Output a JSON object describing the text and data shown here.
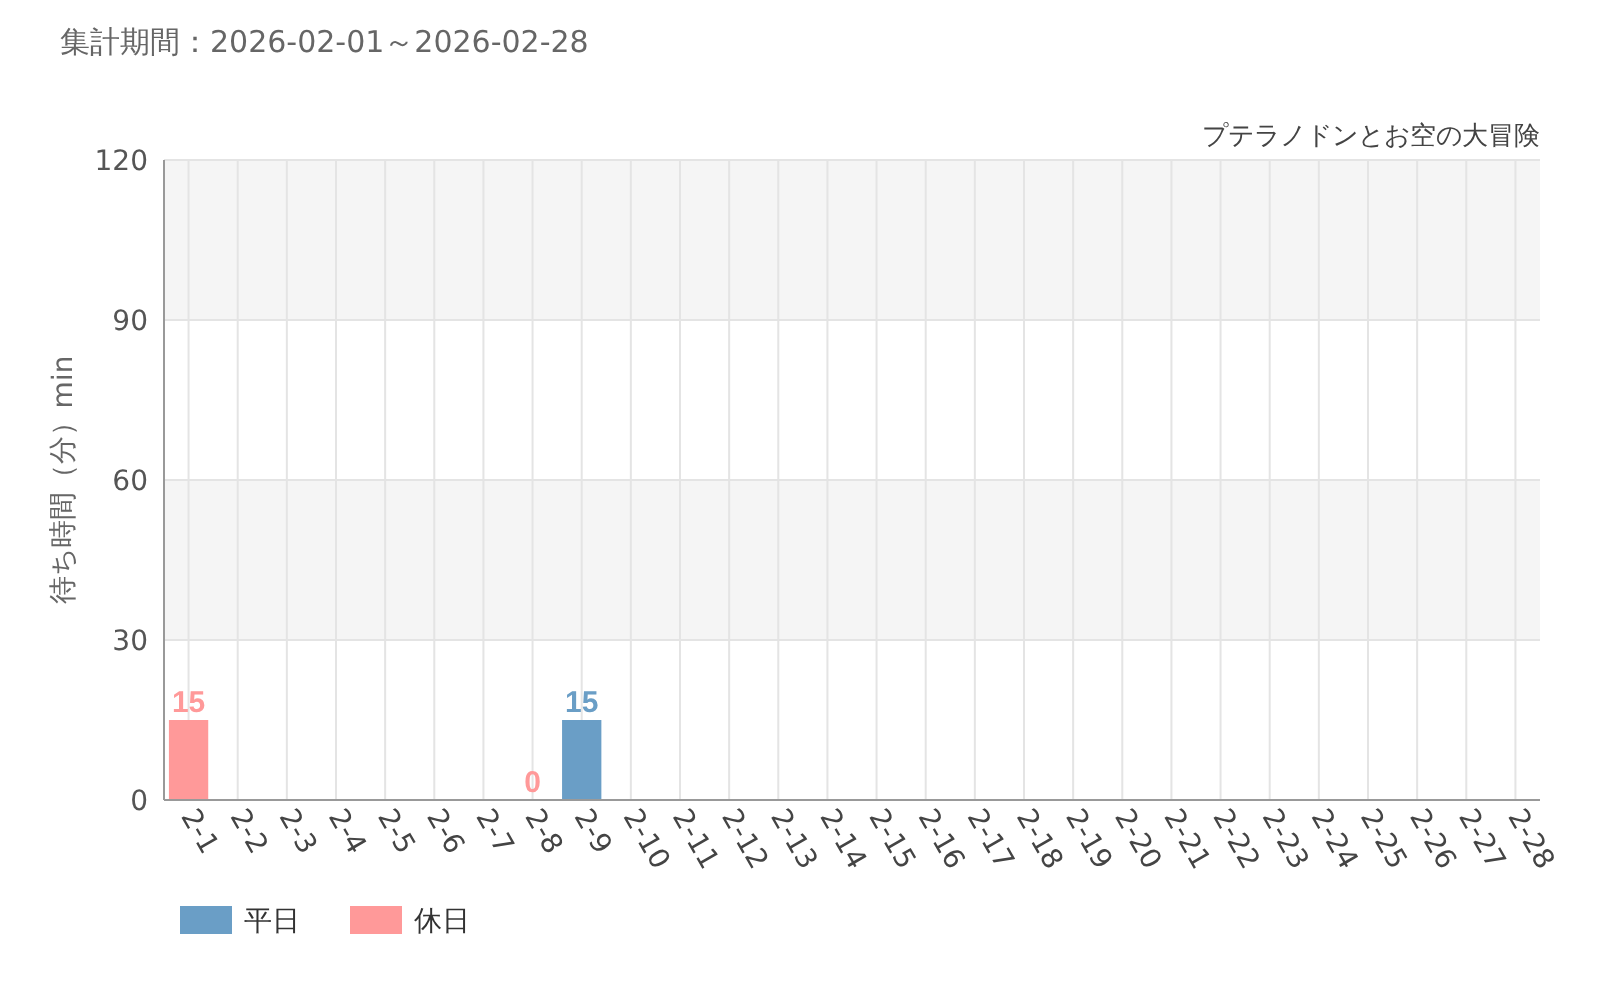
{
  "chart_data": {
    "type": "bar",
    "title": "集計期間：2026-02-01～2026-02-28",
    "subtitle": "プテラノドンとお空の大冒険",
    "ylabel": "待ち時間（分）min",
    "categories": [
      "2-1",
      "2-2",
      "2-3",
      "2-4",
      "2-5",
      "2-6",
      "2-7",
      "2-8",
      "2-9",
      "2-10",
      "2-11",
      "2-12",
      "2-13",
      "2-14",
      "2-15",
      "2-16",
      "2-17",
      "2-18",
      "2-19",
      "2-20",
      "2-21",
      "2-22",
      "2-23",
      "2-24",
      "2-25",
      "2-26",
      "2-27",
      "2-28"
    ],
    "series": [
      {
        "name": "平日",
        "color": "#6a9ec6",
        "values": [
          null,
          null,
          null,
          null,
          null,
          null,
          null,
          null,
          15,
          null,
          null,
          null,
          null,
          null,
          null,
          null,
          null,
          null,
          null,
          null,
          null,
          null,
          null,
          null,
          null,
          null,
          null,
          null
        ],
        "value_labels": [
          null,
          null,
          null,
          null,
          null,
          null,
          null,
          null,
          "15",
          null,
          null,
          null,
          null,
          null,
          null,
          null,
          null,
          null,
          null,
          null,
          null,
          null,
          null,
          null,
          null,
          null,
          null,
          null
        ]
      },
      {
        "name": "休日",
        "color": "#ff9999",
        "values": [
          15,
          null,
          null,
          null,
          null,
          null,
          null,
          0,
          null,
          null,
          null,
          null,
          null,
          null,
          null,
          null,
          null,
          null,
          null,
          null,
          null,
          null,
          null,
          null,
          null,
          null,
          null,
          null
        ],
        "value_labels": [
          "15",
          null,
          null,
          null,
          null,
          null,
          null,
          "0",
          null,
          null,
          null,
          null,
          null,
          null,
          null,
          null,
          null,
          null,
          null,
          null,
          null,
          null,
          null,
          null,
          null,
          null,
          null,
          null
        ]
      }
    ],
    "stacked": true,
    "ylim": [
      0,
      120
    ],
    "yticks": [
      0,
      30,
      60,
      90,
      120
    ],
    "grid": true,
    "legend": "bottom left"
  }
}
